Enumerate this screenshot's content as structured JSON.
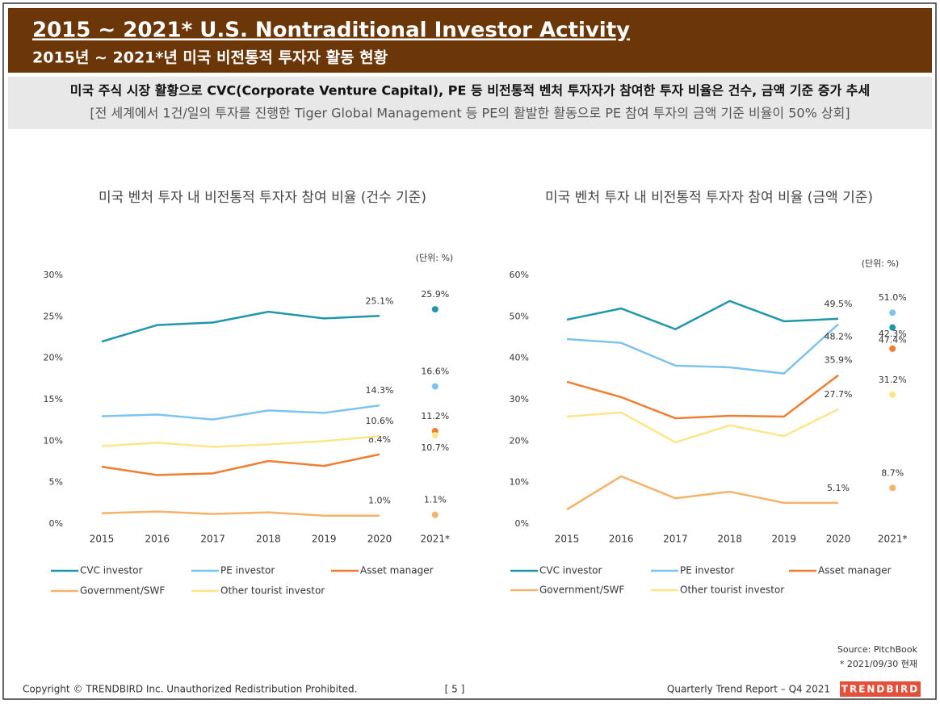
{
  "header": {
    "title": "2015 ~ 2021* U.S. Nontraditional Investor Activity",
    "subtitle": "2015년 ~ 2021*년 미국 비전통적 투자자 활동 현황"
  },
  "summary": {
    "line1": "미국 주식 시장 활황으로 CVC(Corporate Venture Capital), PE 등 비전통적 벤처 투자자가 참여한 투자 비율은 건수, 금액 기준 증가 추세",
    "line2": "[전 세계에서 1건/일의 투자를 진행한 Tiger Global Management 등 PE의 활발한 활동으로 PE 참여 투자의 금액 기준 비율이 50% 상회]"
  },
  "chart_data": [
    {
      "type": "line",
      "title": "미국 벤처 투자 내 비전통적 투자자 참여 비율 (건수 기준)",
      "unit": "(단위: %)",
      "categories": [
        "2015",
        "2016",
        "2017",
        "2018",
        "2019",
        "2020",
        "2021*"
      ],
      "ylim": [
        0,
        30
      ],
      "yticks": [
        {
          "value": 0,
          "label": "0%"
        },
        {
          "value": 5,
          "label": "5%"
        },
        {
          "value": 10,
          "label": "10%"
        },
        {
          "value": 15,
          "label": "15%"
        },
        {
          "value": 20,
          "label": "20%"
        },
        {
          "value": 25,
          "label": "25%"
        },
        {
          "value": 30,
          "label": "30%"
        }
      ],
      "grid": false,
      "series": [
        {
          "name": "CVC investor",
          "color": "#1f97a8",
          "values": [
            22.0,
            24.0,
            24.3,
            25.6,
            24.8,
            25.1,
            25.9
          ],
          "value_labels": [
            null,
            null,
            null,
            null,
            null,
            "25.1%",
            "25.9%"
          ]
        },
        {
          "name": "PE investor",
          "color": "#7cc3f0",
          "values": [
            13.0,
            13.2,
            12.6,
            13.7,
            13.4,
            14.3,
            16.6
          ],
          "value_labels": [
            null,
            null,
            null,
            null,
            null,
            "14.3%",
            "16.6%"
          ]
        },
        {
          "name": "Asset manager",
          "color": "#ee7e32",
          "values": [
            6.9,
            5.9,
            6.1,
            7.6,
            7.0,
            8.4,
            11.2
          ],
          "value_labels": [
            null,
            null,
            null,
            null,
            null,
            "8.4%",
            "11.2%"
          ]
        },
        {
          "name": "Government/SWF",
          "color": "#f4b26a",
          "values": [
            1.3,
            1.5,
            1.2,
            1.4,
            1.0,
            1.0,
            1.1
          ],
          "value_labels": [
            null,
            null,
            null,
            null,
            null,
            "1.0%",
            "1.1%"
          ]
        },
        {
          "name": "Other tourist investor",
          "color": "#fde68a",
          "values": [
            9.4,
            9.8,
            9.3,
            9.6,
            10.0,
            10.6,
            10.7
          ],
          "value_labels": [
            null,
            null,
            null,
            null,
            null,
            "10.6%",
            "10.7%"
          ]
        }
      ]
    },
    {
      "type": "line",
      "title": "미국 벤처 투자 내 비전통적 투자자 참여 비율 (금액 기준)",
      "unit": "(단위: %)",
      "categories": [
        "2015",
        "2016",
        "2017",
        "2018",
        "2019",
        "2020",
        "2021*"
      ],
      "ylim": [
        0,
        60
      ],
      "yticks": [
        {
          "value": 0,
          "label": "0%"
        },
        {
          "value": 10,
          "label": "10%"
        },
        {
          "value": 20,
          "label": "20%"
        },
        {
          "value": 30,
          "label": "30%"
        },
        {
          "value": 40,
          "label": "40%"
        },
        {
          "value": 50,
          "label": "50%"
        },
        {
          "value": 60,
          "label": "60%"
        }
      ],
      "grid": false,
      "series": [
        {
          "name": "CVC investor",
          "color": "#1f97a8",
          "values": [
            49.3,
            52.0,
            47.0,
            53.8,
            48.9,
            49.5,
            47.4
          ],
          "value_labels": [
            null,
            null,
            null,
            null,
            null,
            "49.5%",
            "47.4%"
          ]
        },
        {
          "name": "PE investor",
          "color": "#7cc3f0",
          "values": [
            44.6,
            43.7,
            38.2,
            37.8,
            36.3,
            48.2,
            51.0
          ],
          "value_labels": [
            null,
            null,
            null,
            null,
            null,
            "48.2%",
            "51.0%"
          ]
        },
        {
          "name": "Asset manager",
          "color": "#ee7e32",
          "values": [
            34.3,
            30.6,
            25.5,
            26.1,
            25.9,
            35.9,
            42.3
          ],
          "value_labels": [
            null,
            null,
            null,
            null,
            null,
            "35.9%",
            "42.3%"
          ]
        },
        {
          "name": "Government/SWF",
          "color": "#f4b26a",
          "values": [
            3.5,
            11.5,
            6.2,
            7.8,
            5.1,
            5.1,
            8.7
          ],
          "value_labels": [
            null,
            null,
            null,
            null,
            null,
            "5.1%",
            "8.7%"
          ]
        },
        {
          "name": "Other tourist investor",
          "color": "#fde68a",
          "values": [
            25.9,
            26.9,
            19.7,
            23.8,
            21.2,
            27.7,
            31.2
          ],
          "value_labels": [
            null,
            null,
            null,
            null,
            null,
            "27.7%",
            "31.2%"
          ]
        }
      ]
    }
  ],
  "footer": {
    "source": "Source: PitchBook",
    "note": "* 2021/09/30 현재",
    "copyright": "Copyright © TRENDBIRD Inc. Unauthorized Redistribution Prohibited.",
    "page": "[ 5 ]",
    "report": "Quarterly Trend Report – Q4 2021",
    "brand": "TRENDBIRD"
  }
}
